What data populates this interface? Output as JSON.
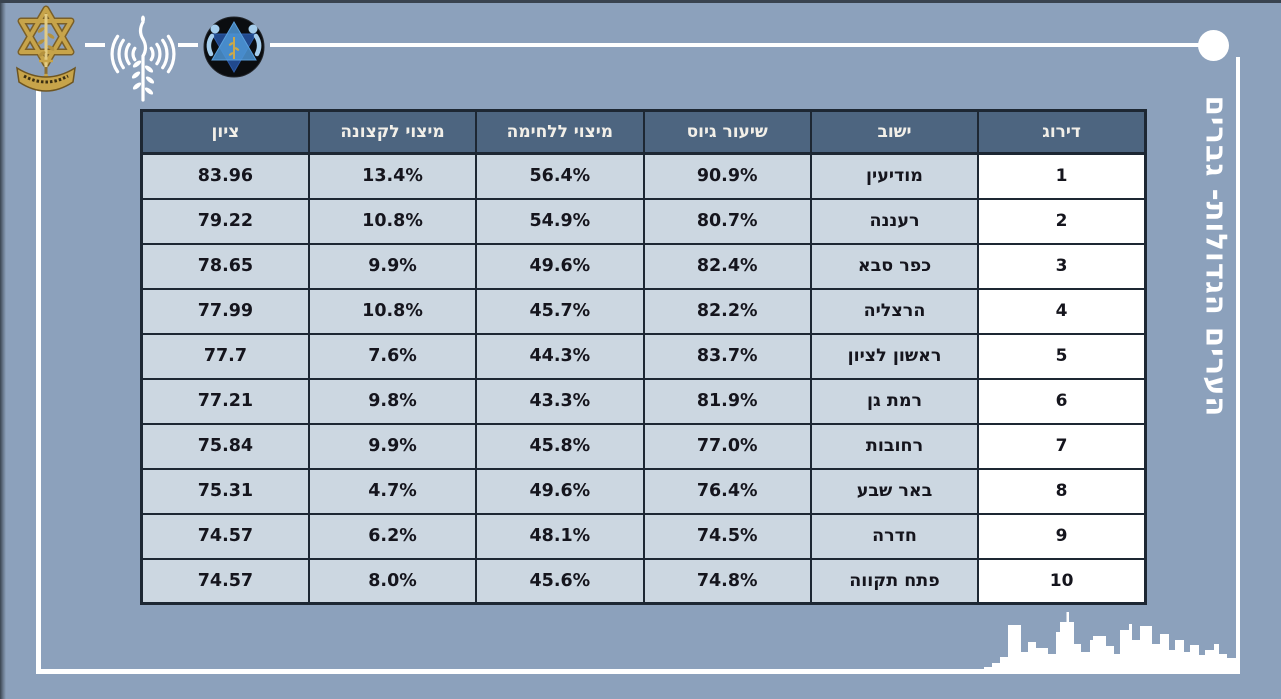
{
  "page": {
    "vertical_title": "הערים הגדולות- גברים"
  },
  "icons": {
    "left": "idf-insignia-icon",
    "middle": "army-radio-antenna-icon",
    "right": "meitav-star-badge-icon",
    "bottom": "city-skyline-silhouette"
  },
  "colors": {
    "bg": "#8ca1bc",
    "frame": "#ffffff",
    "border": "#1d2733",
    "header_bg": "#4d6580",
    "header_text": "#f2efe8",
    "cell_bg": "#ccd7e1",
    "cell_text": "#15151d",
    "rank_bg": "#ffffff",
    "gold": "#c7a44a"
  },
  "table": {
    "columns": [
      {
        "key": "rank",
        "label": "דירוג"
      },
      {
        "key": "city",
        "label": "ישוב"
      },
      {
        "key": "enlistment_rate",
        "label": "שיעור גיוס"
      },
      {
        "key": "combat_utilization",
        "label": "מיצוי ללחימה"
      },
      {
        "key": "officer_utilization",
        "label": "מיצוי לקצונה"
      },
      {
        "key": "score",
        "label": "ציון"
      }
    ],
    "rows": [
      {
        "rank": "1",
        "city": "מודיעין",
        "enlistment_rate": "90.9%",
        "combat_utilization": "56.4%",
        "officer_utilization": "13.4%",
        "score": "83.96"
      },
      {
        "rank": "2",
        "city": "רעננה",
        "enlistment_rate": "80.7%",
        "combat_utilization": "54.9%",
        "officer_utilization": "10.8%",
        "score": "79.22"
      },
      {
        "rank": "3",
        "city": "כפר סבא",
        "enlistment_rate": "82.4%",
        "combat_utilization": "49.6%",
        "officer_utilization": "9.9%",
        "score": "78.65"
      },
      {
        "rank": "4",
        "city": "הרצליה",
        "enlistment_rate": "82.2%",
        "combat_utilization": "45.7%",
        "officer_utilization": "10.8%",
        "score": "77.99"
      },
      {
        "rank": "5",
        "city": "ראשון לציון",
        "enlistment_rate": "83.7%",
        "combat_utilization": "44.3%",
        "officer_utilization": "7.6%",
        "score": "77.7"
      },
      {
        "rank": "6",
        "city": "רמת גן",
        "enlistment_rate": "81.9%",
        "combat_utilization": "43.3%",
        "officer_utilization": "9.8%",
        "score": "77.21"
      },
      {
        "rank": "7",
        "city": "רחובות",
        "enlistment_rate": "77.0%",
        "combat_utilization": "45.8%",
        "officer_utilization": "9.9%",
        "score": "75.84"
      },
      {
        "rank": "8",
        "city": "באר שבע",
        "enlistment_rate": "76.4%",
        "combat_utilization": "49.6%",
        "officer_utilization": "4.7%",
        "score": "75.31"
      },
      {
        "rank": "9",
        "city": "חדרה",
        "enlistment_rate": "74.5%",
        "combat_utilization": "48.1%",
        "officer_utilization": "6.2%",
        "score": "74.57"
      },
      {
        "rank": "10",
        "city": "פתח תקווה",
        "enlistment_rate": "74.8%",
        "combat_utilization": "45.6%",
        "officer_utilization": "8.0%",
        "score": "74.57"
      }
    ]
  },
  "chart_data": {
    "type": "table",
    "title": "הערים הגדולות- גברים",
    "columns": [
      "דירוג",
      "ישוב",
      "שיעור גיוס",
      "מיצוי ללחימה",
      "מיצוי לקצונה",
      "ציון"
    ],
    "rows": [
      [
        "1",
        "מודיעין",
        "90.9%",
        "56.4%",
        "13.4%",
        "83.96"
      ],
      [
        "2",
        "רעננה",
        "80.7%",
        "54.9%",
        "10.8%",
        "79.22"
      ],
      [
        "3",
        "כפר סבא",
        "82.4%",
        "49.6%",
        "9.9%",
        "78.65"
      ],
      [
        "4",
        "הרצליה",
        "82.2%",
        "45.7%",
        "10.8%",
        "77.99"
      ],
      [
        "5",
        "ראשון לציון",
        "83.7%",
        "44.3%",
        "7.6%",
        "77.7"
      ],
      [
        "6",
        "רמת גן",
        "81.9%",
        "43.3%",
        "9.8%",
        "77.21"
      ],
      [
        "7",
        "רחובות",
        "77.0%",
        "45.8%",
        "9.9%",
        "75.84"
      ],
      [
        "8",
        "באר שבע",
        "76.4%",
        "49.6%",
        "4.7%",
        "75.31"
      ],
      [
        "9",
        "חדרה",
        "74.5%",
        "48.1%",
        "6.2%",
        "74.57"
      ],
      [
        "10",
        "פתח תקווה",
        "74.8%",
        "45.6%",
        "8.0%",
        "74.57"
      ]
    ]
  }
}
